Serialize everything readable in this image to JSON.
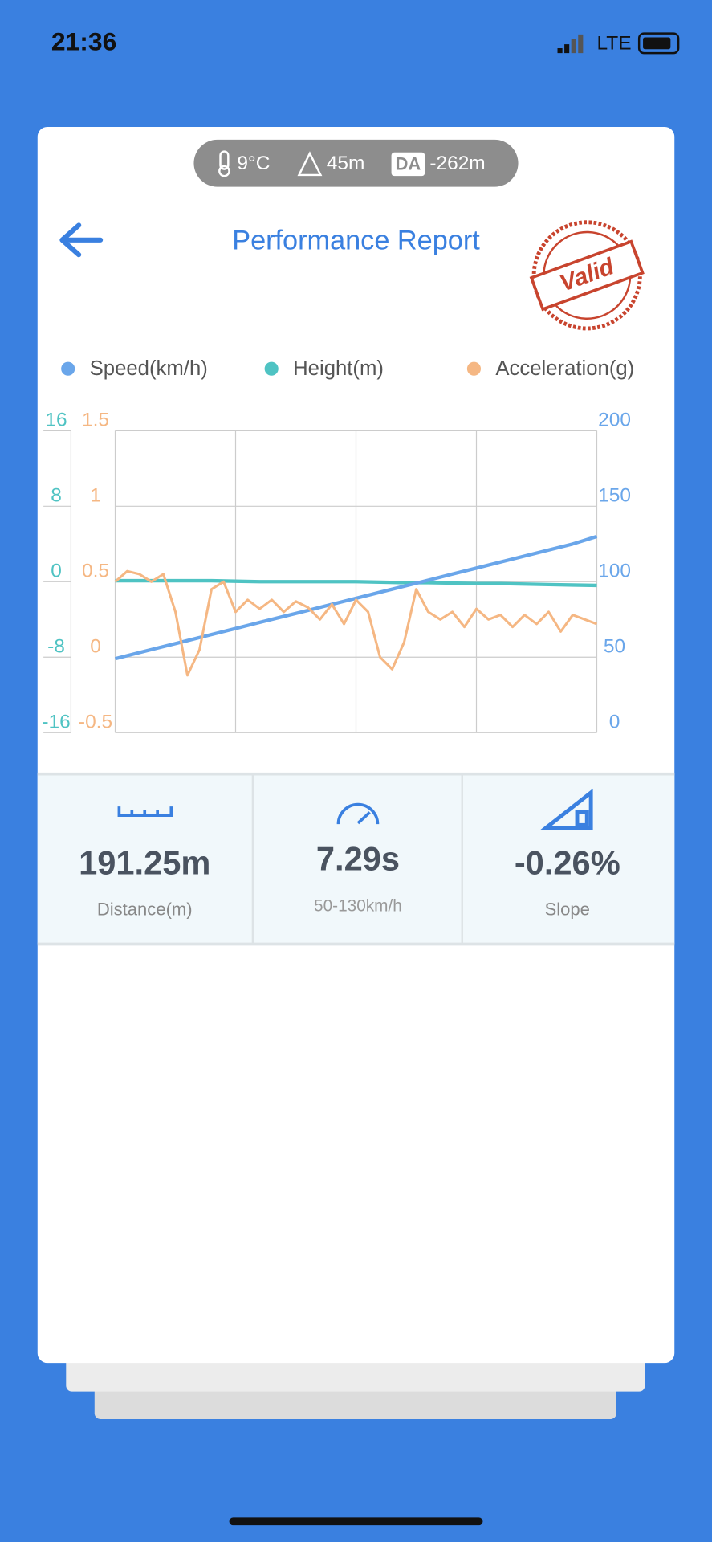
{
  "status_bar": {
    "time": "21:36",
    "network": "LTE"
  },
  "conditions": {
    "temperature": "9°C",
    "altitude": "45m",
    "da_badge": "DA",
    "density_altitude": "-262m"
  },
  "header": {
    "title": "Performance Report",
    "stamp": "Valid"
  },
  "chart_data": {
    "type": "line",
    "series": [
      {
        "name": "Speed(km/h)",
        "color": "#6aa6ea",
        "axis": "y2",
        "values": [
          49,
          53,
          57,
          61,
          65,
          69,
          73,
          77,
          81,
          85,
          89,
          93,
          97,
          101,
          105,
          109,
          113,
          117,
          121,
          125,
          130
        ]
      },
      {
        "name": "Height(m)",
        "color": "#4fc3c3",
        "axis": "y",
        "values": [
          0.1,
          0.1,
          0.1,
          0.1,
          0.1,
          0.05,
          0,
          0,
          0,
          0,
          0,
          -0.05,
          -0.1,
          -0.1,
          -0.15,
          -0.2,
          -0.2,
          -0.25,
          -0.3,
          -0.35,
          -0.4
        ]
      },
      {
        "name": "Acceleration(g)",
        "color": "#f5b783",
        "axis": "y3",
        "values": [
          0.5,
          0.57,
          0.55,
          0.5,
          0.55,
          0.3,
          -0.12,
          0.05,
          0.45,
          0.5,
          0.3,
          0.38,
          0.32,
          0.38,
          0.3,
          0.37,
          0.33,
          0.25,
          0.35,
          0.22,
          0.38,
          0.3,
          0.0,
          -0.08,
          0.1,
          0.45,
          0.3,
          0.25,
          0.3,
          0.2,
          0.32,
          0.25,
          0.28,
          0.2,
          0.28,
          0.22,
          0.3,
          0.17,
          0.28,
          0.25,
          0.22
        ]
      }
    ],
    "ylim": [
      -16,
      16
    ],
    "yticks": [
      -16,
      -8,
      0,
      8,
      16
    ],
    "y3lim": [
      -0.5,
      1.5
    ],
    "y3ticks": [
      -0.5,
      0,
      0.5,
      1,
      1.5
    ],
    "y2lim": [
      0,
      200
    ],
    "y2ticks": [
      0,
      50,
      100,
      150,
      200
    ],
    "grid": true
  },
  "stats": [
    {
      "value": "191.25m",
      "label": "Distance(m)"
    },
    {
      "value": "7.29s",
      "label": "50-130km/h"
    },
    {
      "value": "-0.26%",
      "label": "Slope"
    }
  ]
}
